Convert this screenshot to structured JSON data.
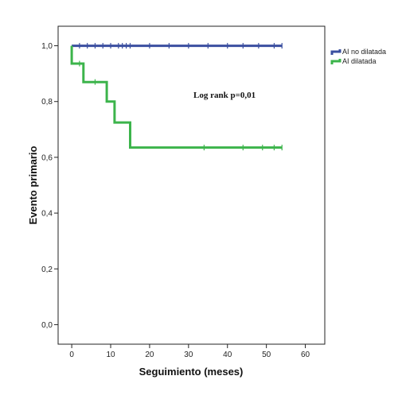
{
  "chart_data": {
    "type": "line",
    "xlabel": "Seguimiento (meses)",
    "ylabel": "Evento primario",
    "xlim": [
      -3.5,
      65
    ],
    "ylim": [
      -0.07,
      1.07
    ],
    "x_ticks": [
      0,
      10,
      20,
      30,
      40,
      50,
      60
    ],
    "x_tick_labels": [
      "0",
      "10",
      "20",
      "30",
      "40",
      "50",
      "60"
    ],
    "y_ticks": [
      0,
      0.2,
      0.4,
      0.6,
      0.8,
      1.0
    ],
    "y_tick_labels": [
      "0,0",
      "0,2",
      "0,4",
      "0,6",
      "0,8",
      "1,0"
    ],
    "annotation": "Log rank p=0,01",
    "legend_position": "top-right, outside plot",
    "series": [
      {
        "name": "AI no dilatada",
        "color": "#3b4fa0",
        "steps": [
          [
            0,
            1.0
          ],
          [
            54,
            1.0
          ]
        ],
        "censor_times": [
          2,
          4,
          6,
          8,
          10,
          12,
          13,
          14,
          15,
          20,
          25,
          30,
          35,
          40,
          44,
          48,
          52,
          54
        ]
      },
      {
        "name": "AI dilatada",
        "color": "#3cb44b",
        "steps": [
          [
            0,
            1.0
          ],
          [
            0,
            0.936
          ],
          [
            3,
            0.936
          ],
          [
            3,
            0.87
          ],
          [
            9,
            0.87
          ],
          [
            9,
            0.8
          ],
          [
            11,
            0.8
          ],
          [
            11,
            0.725
          ],
          [
            15,
            0.725
          ],
          [
            15,
            0.635
          ],
          [
            54,
            0.635
          ]
        ],
        "censor_times": [
          2,
          6,
          34,
          44,
          49,
          52,
          54
        ]
      }
    ]
  }
}
